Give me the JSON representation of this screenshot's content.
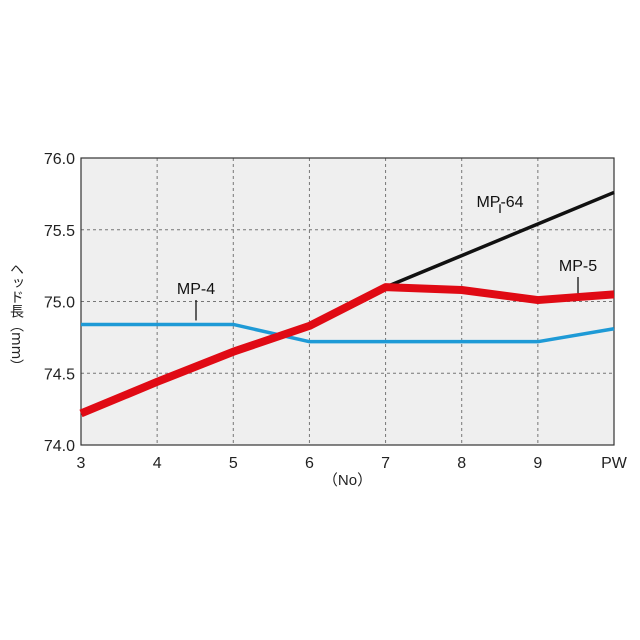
{
  "chart_data": {
    "type": "line",
    "categories": [
      "3",
      "4",
      "5",
      "6",
      "7",
      "8",
      "9",
      "PW"
    ],
    "xlabel": "（No）",
    "ylabel": "ヘッド長（mm）",
    "ylim": [
      74.0,
      76.0
    ],
    "yticks": [
      "74.0",
      "74.5",
      "75.0",
      "75.5",
      "76.0"
    ],
    "grid": true,
    "background": "#efefef",
    "series": [
      {
        "name": "MP-64",
        "color": "#111111",
        "values": [
          74.22,
          74.44,
          74.65,
          74.83,
          75.1,
          75.32,
          75.54,
          75.76
        ]
      },
      {
        "name": "MP-4",
        "color": "#1e9ad6",
        "values": [
          74.84,
          74.84,
          74.84,
          74.72,
          74.72,
          74.72,
          74.72,
          74.81
        ]
      },
      {
        "name": "MP-5",
        "color": "#e00a14",
        "values": [
          74.22,
          74.44,
          74.65,
          74.83,
          75.1,
          75.08,
          75.01,
          75.05
        ]
      }
    ]
  }
}
